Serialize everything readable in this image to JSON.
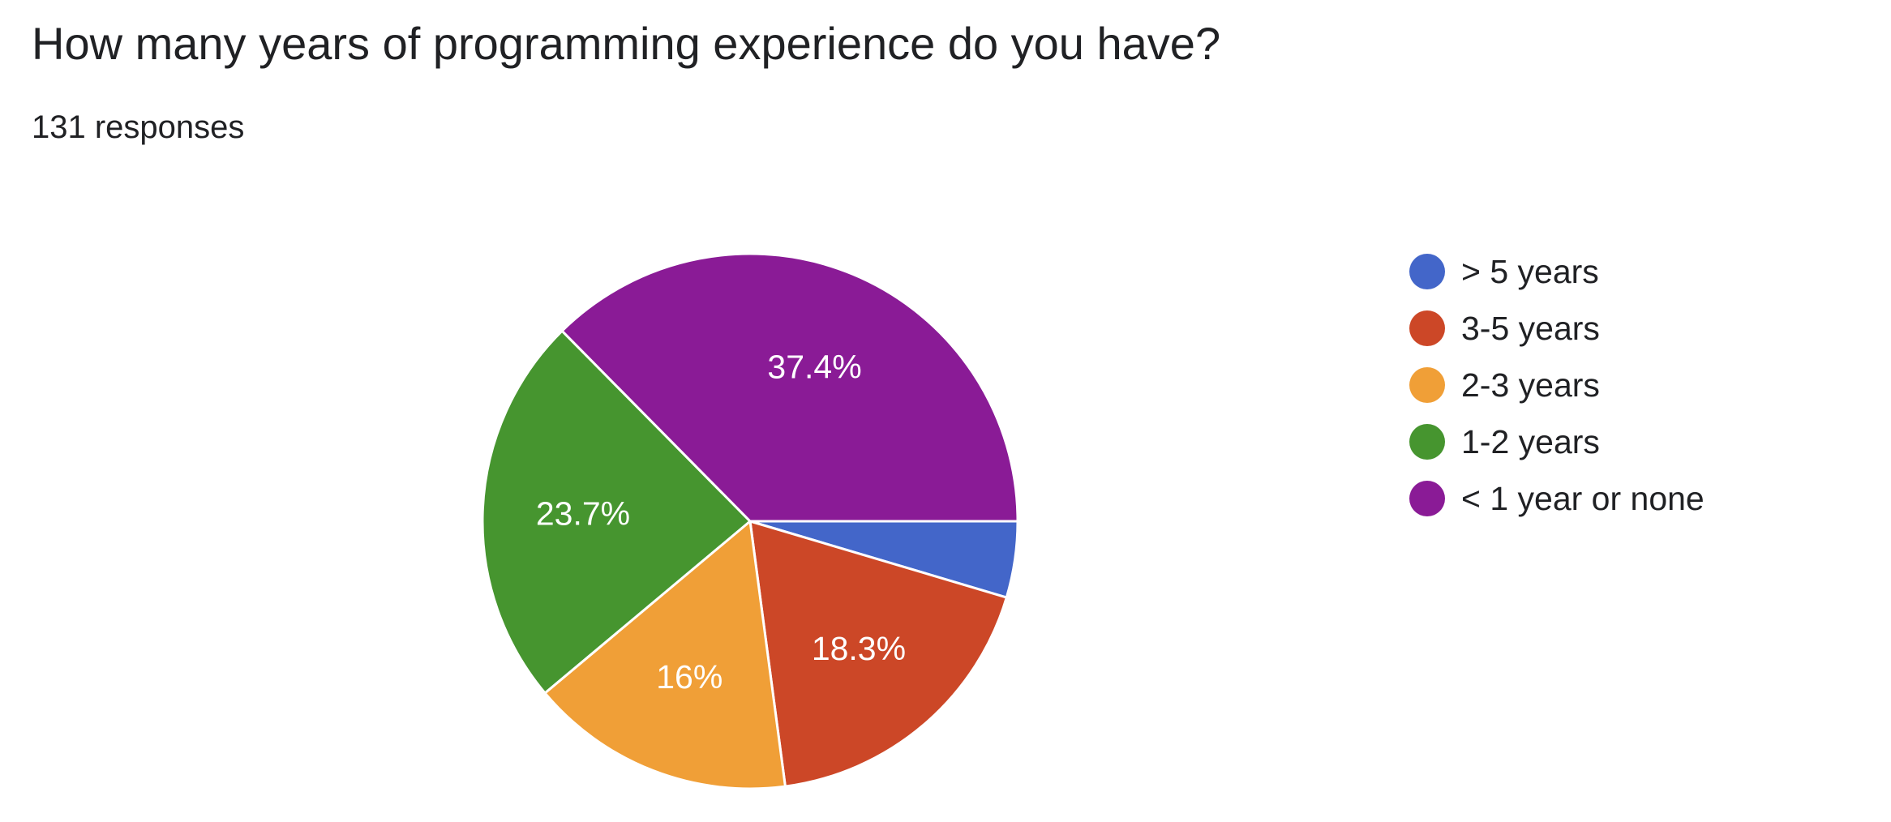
{
  "question": "How many years of programming experience do you have?",
  "responses_text": "131 responses",
  "chart_data": {
    "type": "pie",
    "title": "How many years of programming experience do you have?",
    "total_responses": 131,
    "slices": [
      {
        "label": "> 5 years",
        "percent": 4.6,
        "value_label": "",
        "color": "#4366c9"
      },
      {
        "label": "3-5 years",
        "percent": 18.3,
        "value_label": "18.3%",
        "color": "#cc4727"
      },
      {
        "label": "2-3 years",
        "percent": 16.0,
        "value_label": "16%",
        "color": "#f09f37"
      },
      {
        "label": "1-2 years",
        "percent": 23.7,
        "value_label": "23.7%",
        "color": "#46952f"
      },
      {
        "label": "< 1 year or none",
        "percent": 37.4,
        "value_label": "37.4%",
        "color": "#8a1b96"
      }
    ],
    "start_angle": "3 o'clock",
    "direction": "clockwise",
    "legend_position": "right"
  }
}
